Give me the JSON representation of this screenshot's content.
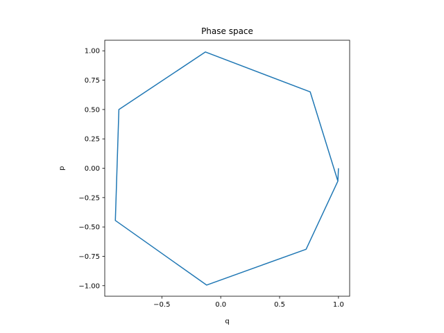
{
  "chart_data": {
    "type": "line",
    "title": "Phase space",
    "xlabel": "q",
    "ylabel": "p",
    "xlim": [
      -0.985,
      1.095
    ],
    "ylim": [
      -1.09,
      1.09
    ],
    "grid": false,
    "xticks": [
      -0.5,
      0.0,
      0.5,
      1.0
    ],
    "xtick_labels": [
      "−0.5",
      "0.0",
      "0.5",
      "1.0"
    ],
    "yticks": [
      -1.0,
      -0.75,
      -0.5,
      -0.25,
      0.0,
      0.25,
      0.5,
      0.75,
      1.0
    ],
    "ytick_labels": [
      "−1.00",
      "−0.75",
      "−0.50",
      "−0.25",
      "0.00",
      "0.25",
      "0.50",
      "0.75",
      "1.00"
    ],
    "series": [
      {
        "color": "#1f77b4",
        "x": [
          1.0,
          0.995,
          0.76,
          -0.13,
          -0.865,
          -0.895,
          -0.12,
          0.725,
          0.995,
          1.0
        ],
        "y": [
          0.0,
          -0.11,
          0.65,
          0.99,
          0.5,
          -0.445,
          -0.995,
          -0.69,
          -0.11,
          0.0
        ]
      }
    ]
  }
}
